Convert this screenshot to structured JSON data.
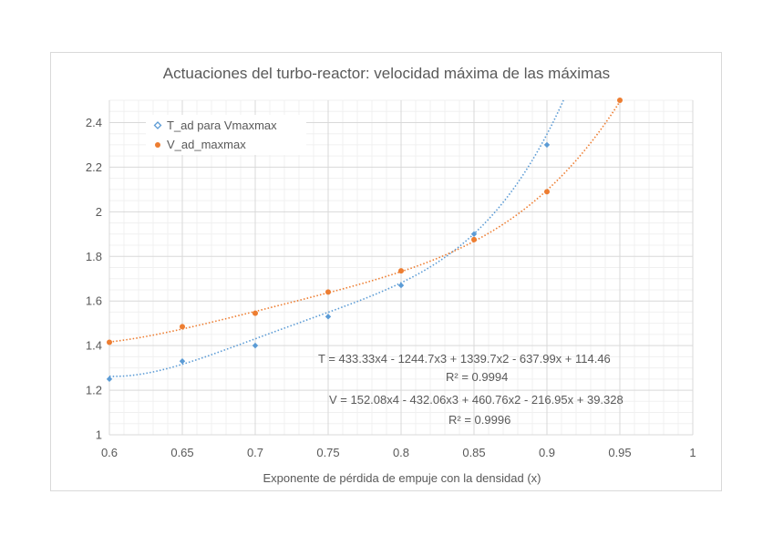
{
  "chart_data": {
    "type": "scatter",
    "title": "Actuaciones del turbo-reactor: velocidad máxima de las máximas",
    "xlabel": "Exponente de pérdida de empuje con la densidad (x)",
    "ylabel": "",
    "xlim": [
      0.6,
      1.0
    ],
    "ylim": [
      1.0,
      2.5
    ],
    "x_ticks": [
      "0.6",
      "0.65",
      "0.7",
      "0.75",
      "0.8",
      "0.85",
      "0.9",
      "0.95",
      "1"
    ],
    "y_ticks": [
      "1",
      "1.2",
      "1.4",
      "1.6",
      "1.8",
      "2",
      "2.2",
      "2.4"
    ],
    "grid": true,
    "legend_position": "top-left",
    "series": [
      {
        "name": "T_ad para Vmaxmax",
        "color": "#5b9bd5",
        "marker": "diamond",
        "x": [
          0.6,
          0.65,
          0.7,
          0.75,
          0.8,
          0.85,
          0.9
        ],
        "y": [
          1.25,
          1.33,
          1.4,
          1.53,
          1.67,
          1.9,
          2.3
        ],
        "trendline": {
          "type": "polynomial-4",
          "coefficients": [
            433.33,
            -1244.7,
            1339.7,
            -637.99,
            114.46
          ],
          "equation": "T = 433.33x4 - 1244.7x3 + 1339.7x2 - 637.99x + 114.46",
          "r2": "R² = 0.9994"
        }
      },
      {
        "name": "V_ad_maxmax",
        "color": "#ed7d31",
        "marker": "circle",
        "x": [
          0.6,
          0.65,
          0.7,
          0.75,
          0.8,
          0.85,
          0.9,
          0.95
        ],
        "y": [
          1.415,
          1.485,
          1.545,
          1.64,
          1.735,
          1.875,
          2.09,
          2.5
        ],
        "trendline": {
          "type": "polynomial-4",
          "coefficients": [
            152.08,
            -432.06,
            460.76,
            -216.95,
            39.328
          ],
          "equation": "V = 152.08x4 - 432.06x3 + 460.76x2 - 216.95x + 39.328",
          "r2": "R² = 0.9996"
        }
      }
    ]
  }
}
